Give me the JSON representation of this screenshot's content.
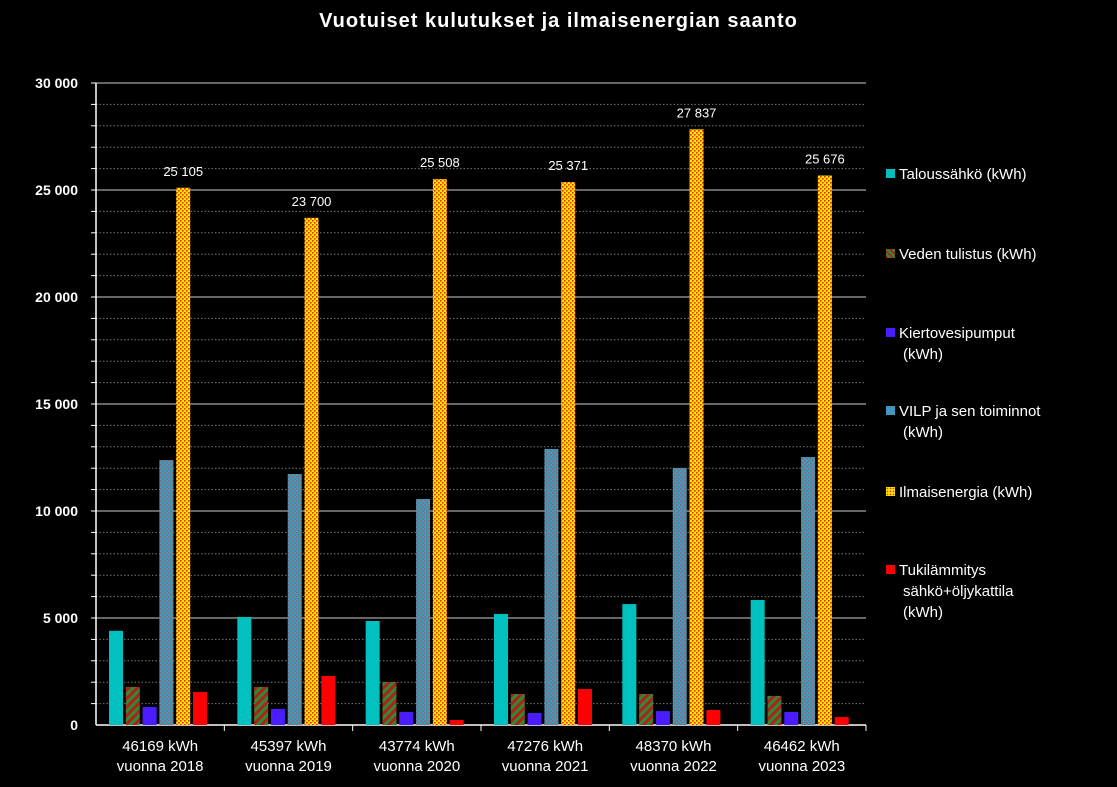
{
  "chart_data": {
    "type": "bar",
    "title": "Vuotuiset kulutukset ja ilmaisenergian saanto",
    "categories": [
      [
        "46169  kWh",
        "vuonna 2018"
      ],
      [
        "45397  kWh",
        "vuonna 2019"
      ],
      [
        "43774  kWh",
        "vuonna 2020"
      ],
      [
        "47276  kWh",
        "vuonna 2021"
      ],
      [
        "48370  kWh",
        "vuonna 2022"
      ],
      [
        "46462  kWh",
        "vuonna 2023"
      ]
    ],
    "ylim": [
      0,
      30000
    ],
    "yticks": [
      0,
      5000,
      10000,
      15000,
      20000,
      25000,
      30000
    ],
    "ytick_labels": [
      "0",
      "5 000",
      "10 000",
      "15 000",
      "20 000",
      "25 000",
      "30 000"
    ],
    "grid": "major solid every 5000, minor dotted every 1000",
    "legend_position": "right",
    "series": [
      {
        "name": "Taloussähkö (kWh)",
        "color": "#00c0c0",
        "pattern": "solid",
        "values": [
          4400,
          5050,
          4860,
          5190,
          5650,
          5840
        ]
      },
      {
        "name": "Veden tulistus (kWh)",
        "color": "#2e8b2e",
        "pattern": "red-green diagonal stripes",
        "values": [
          1780,
          1780,
          2010,
          1450,
          1450,
          1360
        ]
      },
      {
        "name": "Kiertovesipumput (kWh)",
        "color": "#4a1cff",
        "pattern": "solid",
        "values": [
          840,
          750,
          610,
          560,
          650,
          610
        ]
      },
      {
        "name": "VILP ja sen toiminnot (kWh)",
        "color": "#3a9cc8",
        "pattern": "blue with red-gray dots",
        "values": [
          12380,
          11730,
          10560,
          12900,
          12010,
          12520
        ]
      },
      {
        "name": "Ilmaisenergia (kWh)",
        "color": "#ffe600",
        "pattern": "yellow with red dots",
        "values": [
          25105,
          23700,
          25508,
          25371,
          27837,
          25676
        ],
        "data_labels": [
          "25 105",
          "23 700",
          "25 508",
          "25 371",
          "27 837",
          "25 676"
        ]
      },
      {
        "name": "Tukilämmitys sähkö+öljykattila (kWh)",
        "color": "#ff0000",
        "pattern": "solid",
        "values": [
          1540,
          2290,
          230,
          1680,
          700,
          370
        ]
      }
    ],
    "legend_lines": [
      [
        "Taloussähkö (kWh)"
      ],
      [
        "Veden tulistus (kWh)"
      ],
      [
        "Kiertovesipumput",
        "(kWh)"
      ],
      [
        "VILP ja sen toiminnot",
        "(kWh)"
      ],
      [
        "Ilmaisenergia (kWh)"
      ],
      [
        "Tukilämmitys",
        "sähkö+öljykattila",
        "(kWh)"
      ]
    ]
  }
}
